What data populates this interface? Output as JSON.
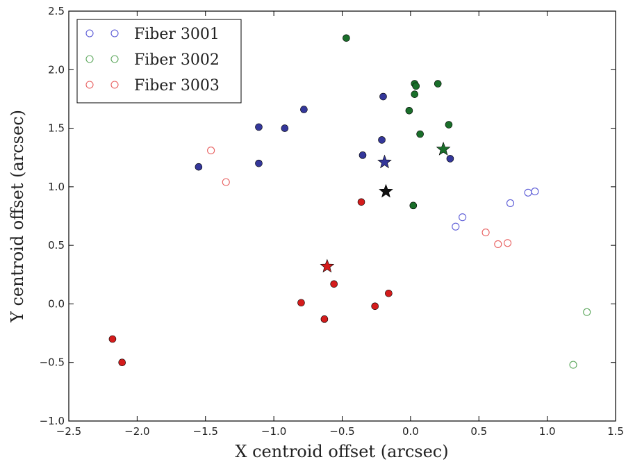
{
  "chart_data": {
    "type": "scatter",
    "xlabel": "X centroid offset (arcsec)",
    "ylabel": "Y centroid offset (arcsec)",
    "xlim": [
      -2.5,
      1.5
    ],
    "ylim": [
      -1.0,
      2.5
    ],
    "xticks": [
      "−2.5",
      "−2.0",
      "−1.5",
      "−1.0",
      "−0.5",
      "0.0",
      "0.5",
      "1.0",
      "1.5"
    ],
    "yticks": [
      "−1.0",
      "−0.5",
      "0.0",
      "0.5",
      "1.0",
      "1.5",
      "2.0",
      "2.5"
    ],
    "xtick_values": [
      -2.5,
      -2.0,
      -1.5,
      -1.0,
      -0.5,
      0.0,
      0.5,
      1.0,
      1.5
    ],
    "ytick_values": [
      -1.0,
      -0.5,
      0.0,
      0.5,
      1.0,
      1.5,
      2.0,
      2.5
    ],
    "grid": false,
    "legend_position": "top-left",
    "series": [
      {
        "name": "Fiber 3001",
        "color": "#34379a",
        "open_color": "#5a5ad6",
        "filled": [
          [
            -1.55,
            1.17
          ],
          [
            -1.11,
            1.51
          ],
          [
            -1.11,
            1.2
          ],
          [
            -0.92,
            1.5
          ],
          [
            -0.78,
            1.66
          ],
          [
            -0.35,
            1.27
          ],
          [
            -0.21,
            1.4
          ],
          [
            -0.2,
            1.77
          ],
          [
            0.29,
            1.24
          ]
        ],
        "open": [
          [
            0.33,
            0.66
          ],
          [
            0.38,
            0.74
          ],
          [
            0.73,
            0.86
          ],
          [
            0.86,
            0.95
          ],
          [
            0.91,
            0.96
          ]
        ],
        "star": [
          -0.19,
          1.21
        ]
      },
      {
        "name": "Fiber 3002",
        "color": "#1a6e2a",
        "open_color": "#5ea85e",
        "filled": [
          [
            -0.47,
            2.27
          ],
          [
            0.03,
            1.88
          ],
          [
            0.04,
            1.86
          ],
          [
            0.03,
            1.79
          ],
          [
            0.2,
            1.88
          ],
          [
            -0.01,
            1.65
          ],
          [
            0.07,
            1.45
          ],
          [
            0.28,
            1.53
          ],
          [
            0.02,
            0.84
          ]
        ],
        "open": [
          [
            1.29,
            -0.07
          ],
          [
            1.19,
            -0.52
          ]
        ],
        "star": [
          0.24,
          1.32
        ]
      },
      {
        "name": "Fiber 3003",
        "color": "#d41c1c",
        "open_color": "#e86060",
        "filled": [
          [
            -0.36,
            0.87
          ],
          [
            -0.56,
            0.17
          ],
          [
            -0.8,
            0.01
          ],
          [
            -0.63,
            -0.13
          ],
          [
            -0.26,
            -0.02
          ],
          [
            -0.16,
            0.09
          ],
          [
            -2.18,
            -0.3
          ],
          [
            -2.11,
            -0.5
          ]
        ],
        "open": [
          [
            -1.46,
            1.31
          ],
          [
            -1.35,
            1.04
          ],
          [
            0.55,
            0.61
          ],
          [
            0.64,
            0.51
          ],
          [
            0.71,
            0.52
          ]
        ],
        "star": [
          -0.61,
          0.32
        ]
      }
    ],
    "mean_star": {
      "color": "#111111",
      "point": [
        -0.18,
        0.96
      ]
    }
  }
}
